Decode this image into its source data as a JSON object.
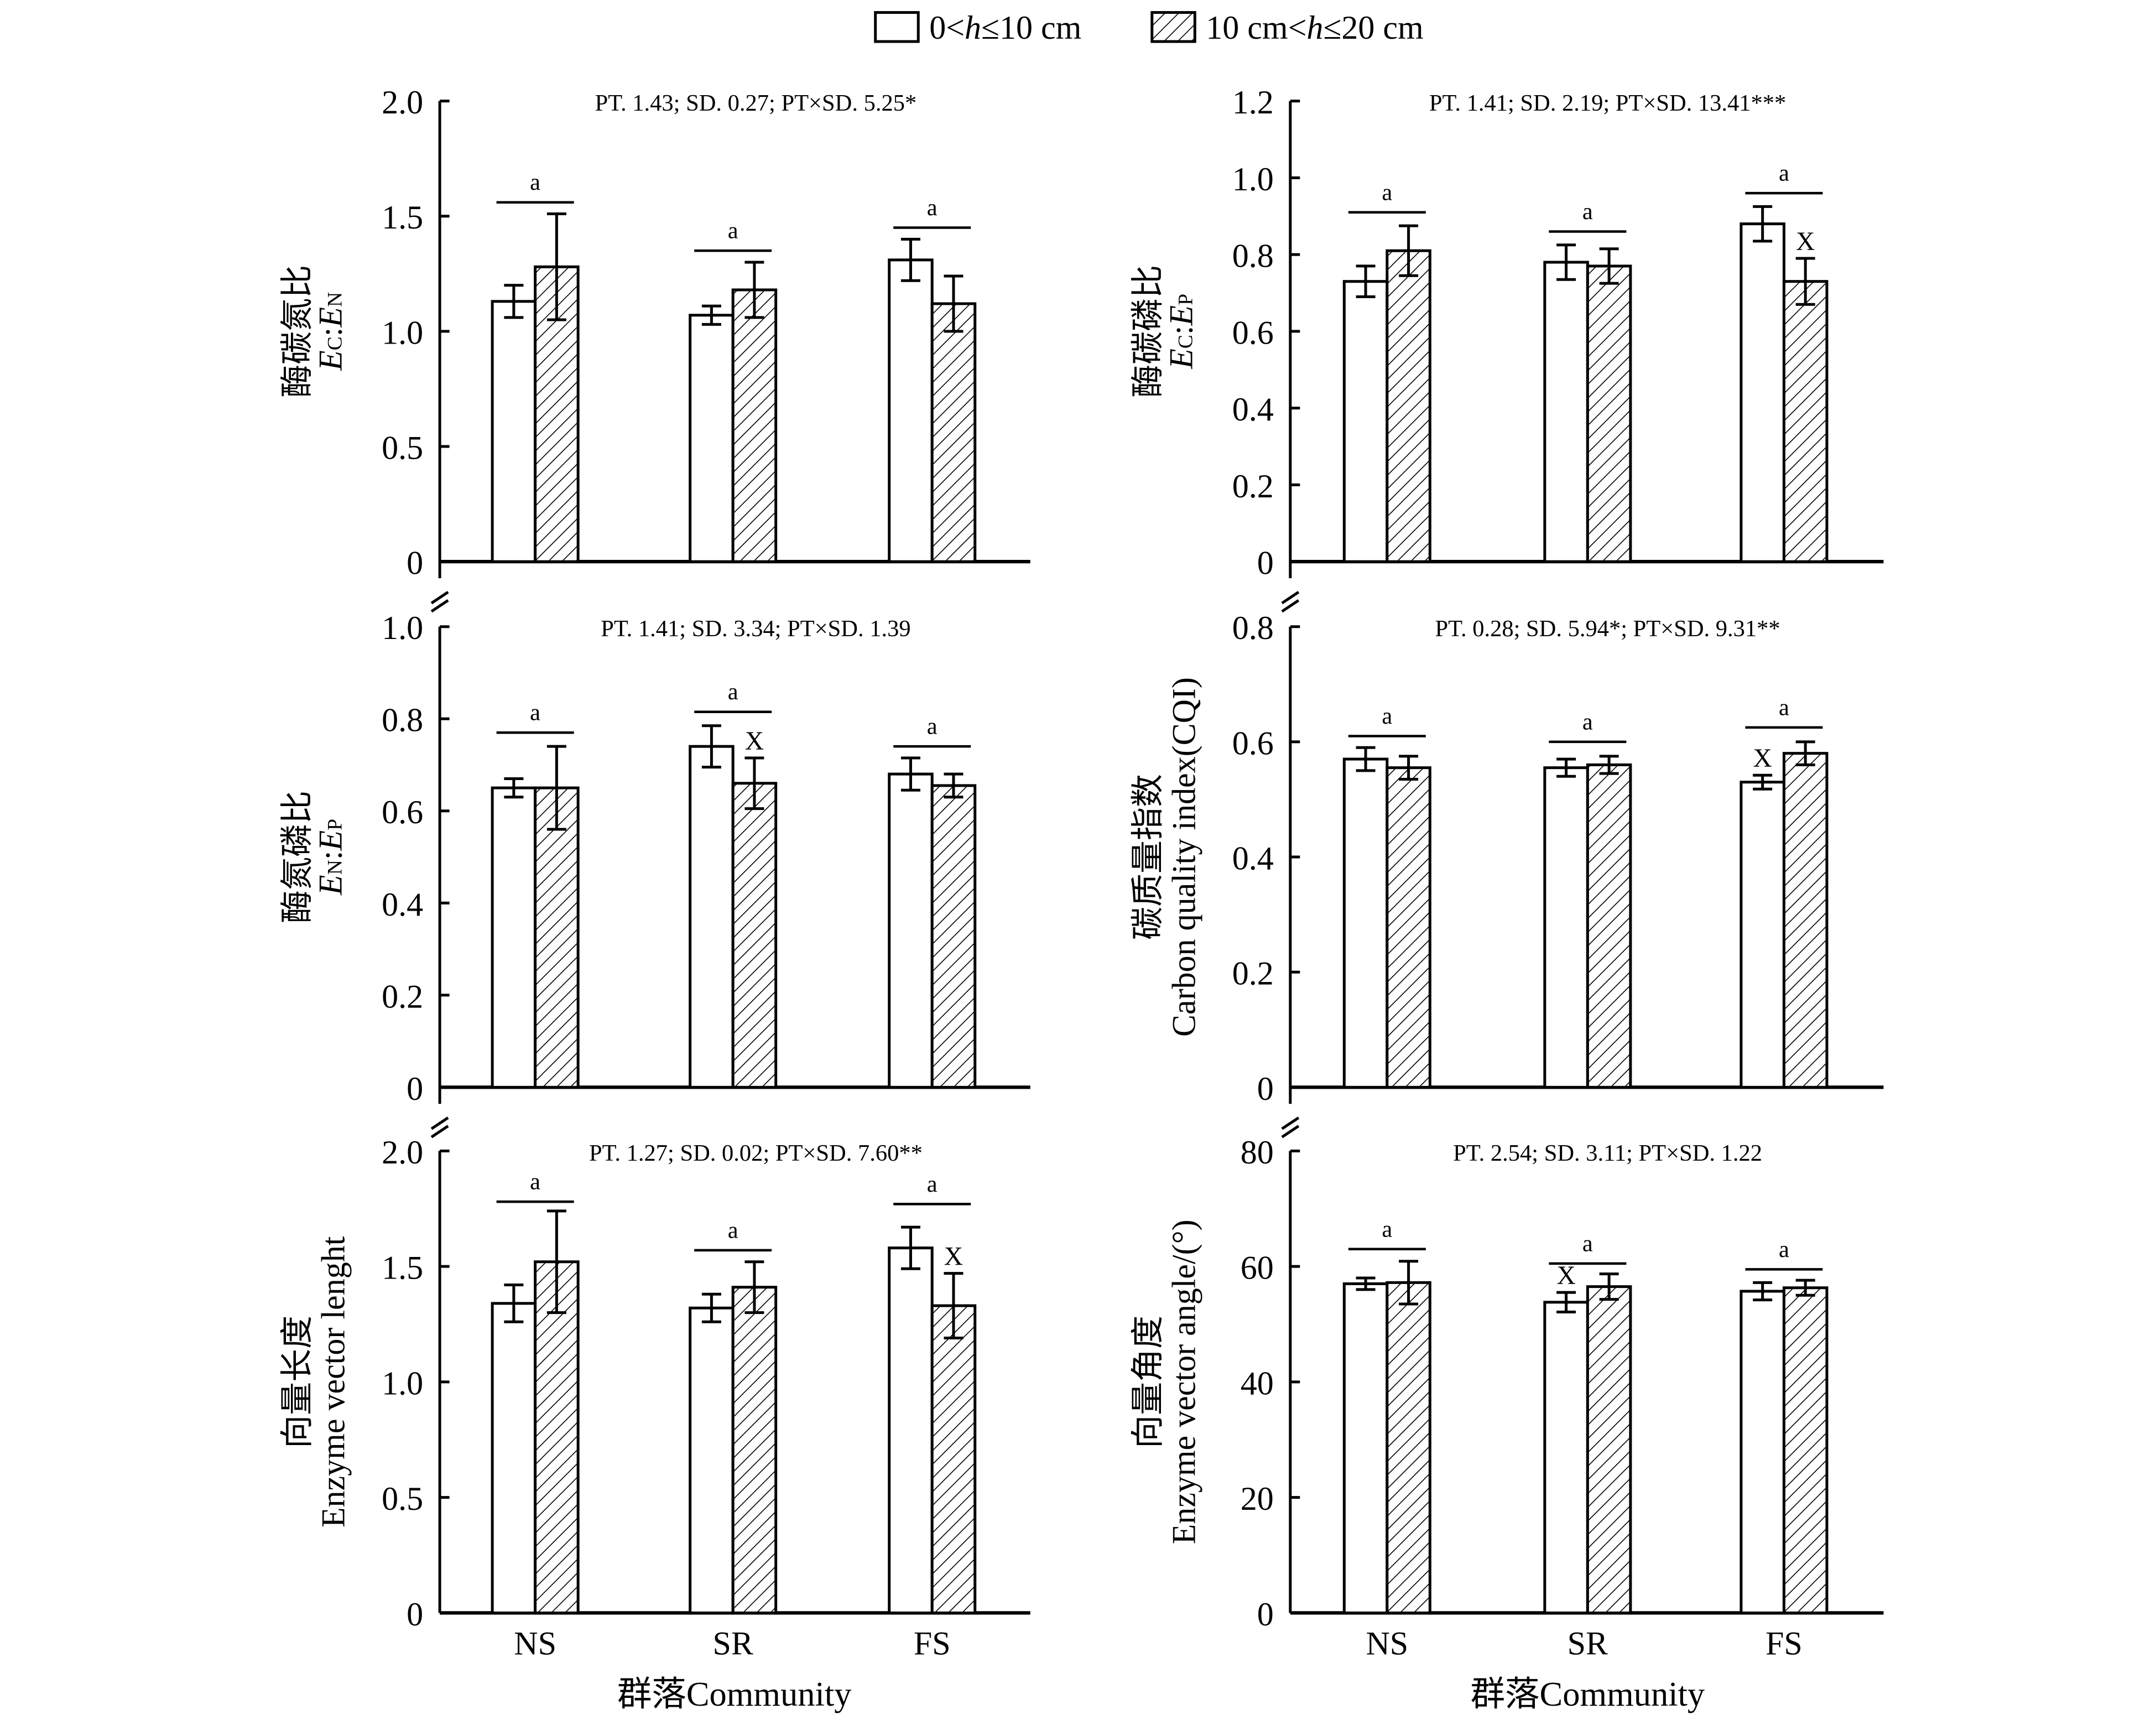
{
  "legend": {
    "items": [
      {
        "label_pre": "0<",
        "label_var": "h",
        "label_post": "≤10 cm",
        "fill": "white"
      },
      {
        "label_pre": "10 cm<",
        "label_var": "h",
        "label_post": "≤20 cm",
        "fill": "hatched"
      }
    ]
  },
  "x_axis_label": "群落Community",
  "colors": {
    "bar_edge": "#000000",
    "bar_fill": "#ffffff",
    "hatch": "#000000"
  },
  "chart_data": [
    {
      "type": "bar",
      "stats": "PT. 1.43; SD. 0.27; PT×SD. 5.25*",
      "ylabel_cn": "酶碳氮比",
      "ylabel_en": {
        "a": "E",
        "a_sub": "C",
        "sep": ":",
        "b": "E",
        "b_sub": "N"
      },
      "ylim": [
        0,
        2.0
      ],
      "ticks": [
        "0",
        "0.5",
        "1.0",
        "1.5",
        "2.0"
      ],
      "tick_values": [
        0,
        0.5,
        1.0,
        1.5,
        2.0
      ],
      "categories": [
        "NS",
        "SR",
        "FS"
      ],
      "series": [
        {
          "values": [
            1.13,
            1.07,
            1.31
          ],
          "errors": [
            0.07,
            0.04,
            0.09
          ]
        },
        {
          "values": [
            1.28,
            1.18,
            1.12
          ],
          "errors": [
            0.23,
            0.12,
            0.12
          ]
        }
      ],
      "group_letters": [
        "a",
        "a",
        "a"
      ],
      "group_letter_levels": [
        1.56,
        1.35,
        1.45
      ],
      "x_marks": [],
      "show_xticklabels": false
    },
    {
      "type": "bar",
      "stats": "PT. 1.41; SD. 2.19; PT×SD. 13.41***",
      "ylabel_cn": "酶碳磷比",
      "ylabel_en": {
        "a": "E",
        "a_sub": "C",
        "sep": ":",
        "b": "E",
        "b_sub": "P"
      },
      "ylim": [
        0,
        1.2
      ],
      "ticks": [
        "0",
        "0.2",
        "0.4",
        "0.6",
        "0.8",
        "1.0",
        "1.2"
      ],
      "tick_values": [
        0,
        0.2,
        0.4,
        0.6,
        0.8,
        1.0,
        1.2
      ],
      "categories": [
        "NS",
        "SR",
        "FS"
      ],
      "series": [
        {
          "values": [
            0.73,
            0.78,
            0.88
          ],
          "errors": [
            0.04,
            0.045,
            0.045
          ]
        },
        {
          "values": [
            0.81,
            0.77,
            0.73
          ],
          "errors": [
            0.065,
            0.045,
            0.06
          ]
        }
      ],
      "group_letters": [
        "a",
        "a",
        "a"
      ],
      "group_letter_levels": [
        0.91,
        0.86,
        0.96
      ],
      "x_marks": [
        {
          "category": "FS",
          "series": 1,
          "label": "X"
        }
      ],
      "show_xticklabels": false
    },
    {
      "type": "bar",
      "stats": "PT. 1.41; SD. 3.34; PT×SD. 1.39",
      "ylabel_cn": "酶氮磷比",
      "ylabel_en": {
        "a": "E",
        "a_sub": "N",
        "sep": ":",
        "b": "E",
        "b_sub": "P"
      },
      "ylim": [
        0,
        1.0
      ],
      "ticks": [
        "0",
        "0.2",
        "0.4",
        "0.6",
        "0.8",
        "1.0"
      ],
      "tick_values": [
        0,
        0.2,
        0.4,
        0.6,
        0.8,
        1.0
      ],
      "categories": [
        "NS",
        "SR",
        "FS"
      ],
      "series": [
        {
          "values": [
            0.65,
            0.74,
            0.68
          ],
          "errors": [
            0.02,
            0.045,
            0.035
          ]
        },
        {
          "values": [
            0.65,
            0.66,
            0.655
          ],
          "errors": [
            0.09,
            0.055,
            0.025
          ]
        }
      ],
      "group_letters": [
        "a",
        "a",
        "a"
      ],
      "group_letter_levels": [
        0.77,
        0.815,
        0.74
      ],
      "x_marks": [
        {
          "category": "SR",
          "series": 1,
          "label": "X"
        }
      ],
      "show_xticklabels": false
    },
    {
      "type": "bar",
      "stats": "PT. 0.28; SD. 5.94*; PT×SD. 9.31**",
      "ylabel_cn": "碳质量指数",
      "ylabel_en_text": "Carbon quality index(CQI)",
      "ylim": [
        0,
        0.8
      ],
      "ticks": [
        "0",
        "0.2",
        "0.4",
        "0.6",
        "0.8"
      ],
      "tick_values": [
        0,
        0.2,
        0.4,
        0.6,
        0.8
      ],
      "categories": [
        "NS",
        "SR",
        "FS"
      ],
      "series": [
        {
          "values": [
            0.57,
            0.555,
            0.53
          ],
          "errors": [
            0.02,
            0.015,
            0.012
          ]
        },
        {
          "values": [
            0.555,
            0.56,
            0.58
          ],
          "errors": [
            0.02,
            0.015,
            0.02
          ]
        }
      ],
      "group_letters": [
        "a",
        "a",
        "a"
      ],
      "group_letter_levels": [
        0.61,
        0.6,
        0.625
      ],
      "x_marks": [
        {
          "category": "FS",
          "series": 0,
          "label": "X"
        }
      ],
      "show_xticklabels": false
    },
    {
      "type": "bar",
      "stats": "PT. 1.27; SD. 0.02; PT×SD. 7.60**",
      "ylabel_cn": "向量长度",
      "ylabel_en_text": "Enzyme vector lenght",
      "ylim": [
        0,
        2.0
      ],
      "ticks": [
        "0",
        "0.5",
        "1.0",
        "1.5",
        "2.0"
      ],
      "tick_values": [
        0,
        0.5,
        1.0,
        1.5,
        2.0
      ],
      "categories": [
        "NS",
        "SR",
        "FS"
      ],
      "series": [
        {
          "values": [
            1.34,
            1.32,
            1.58
          ],
          "errors": [
            0.08,
            0.06,
            0.09
          ]
        },
        {
          "values": [
            1.52,
            1.41,
            1.33
          ],
          "errors": [
            0.22,
            0.11,
            0.14
          ]
        }
      ],
      "group_letters": [
        "a",
        "a",
        "a"
      ],
      "group_letter_levels": [
        1.78,
        1.57,
        1.77
      ],
      "x_marks": [
        {
          "category": "FS",
          "series": 1,
          "label": "X"
        }
      ],
      "show_xticklabels": true
    },
    {
      "type": "bar",
      "stats": "PT. 2.54; SD. 3.11; PT×SD. 1.22",
      "ylabel_cn": "向量角度",
      "ylabel_en_text": "Enzyme vector angle/(°)",
      "ylim": [
        0,
        80
      ],
      "ticks": [
        "0",
        "20",
        "40",
        "60",
        "80"
      ],
      "tick_values": [
        0,
        20,
        40,
        60,
        80
      ],
      "categories": [
        "NS",
        "SR",
        "FS"
      ],
      "series": [
        {
          "values": [
            57.0,
            53.8,
            55.7
          ],
          "errors": [
            1.0,
            1.7,
            1.5
          ]
        },
        {
          "values": [
            57.2,
            56.5,
            56.3
          ],
          "errors": [
            3.7,
            2.2,
            1.3
          ]
        }
      ],
      "group_letters": [
        "a",
        "a",
        "a"
      ],
      "group_letter_levels": [
        63,
        60.5,
        59.5
      ],
      "x_marks": [
        {
          "category": "SR",
          "series": 0,
          "label": "X"
        }
      ],
      "show_xticklabels": true
    }
  ]
}
